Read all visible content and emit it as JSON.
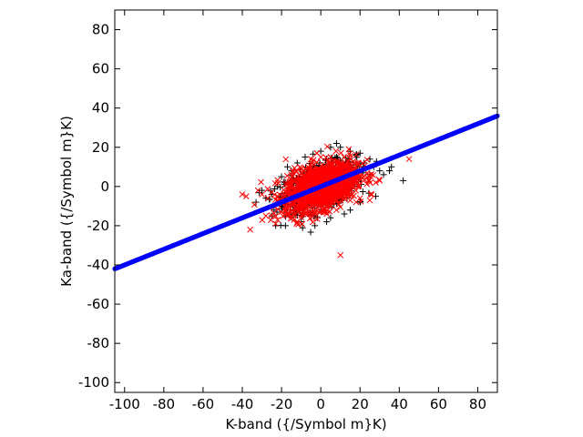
{
  "chart_data": {
    "type": "scatter",
    "xlabel": "K-band ({/Symbol m}K)",
    "ylabel": "Ka-band ({/Symbol m}K)",
    "xlim": [
      -105,
      90
    ],
    "ylim": [
      -105,
      90
    ],
    "xticks": [
      -100,
      -80,
      -60,
      -40,
      -20,
      0,
      20,
      40,
      60,
      80
    ],
    "yticks": [
      -100,
      -80,
      -60,
      -40,
      -20,
      0,
      20,
      40,
      60,
      80
    ],
    "grid": false,
    "series": [
      {
        "marker": "plus",
        "color": "#000000",
        "cluster_center": [
          0,
          0
        ],
        "cluster_spread": [
          9,
          6
        ],
        "points": [
          [
            -33,
            -8
          ],
          [
            -30,
            -2
          ],
          [
            -28,
            -6
          ],
          [
            -25,
            -4
          ],
          [
            -23,
            -20
          ],
          [
            -22,
            0
          ],
          [
            -20,
            -10
          ],
          [
            -20,
            5
          ],
          [
            -18,
            -20
          ],
          [
            -17,
            10
          ],
          [
            -15,
            8
          ],
          [
            -12,
            12
          ],
          [
            -10,
            -18
          ],
          [
            -8,
            15
          ],
          [
            -5,
            -15
          ],
          [
            -3,
            -20
          ],
          [
            0,
            18
          ],
          [
            3,
            -18
          ],
          [
            5,
            20
          ],
          [
            8,
            22
          ],
          [
            10,
            20
          ],
          [
            12,
            -14
          ],
          [
            15,
            18
          ],
          [
            18,
            16
          ],
          [
            20,
            17
          ],
          [
            22,
            12
          ],
          [
            25,
            14
          ],
          [
            27,
            10
          ],
          [
            28,
            -5
          ],
          [
            30,
            8
          ],
          [
            32,
            6
          ],
          [
            35,
            8
          ],
          [
            36,
            10
          ],
          [
            42,
            3
          ],
          [
            15,
            -12
          ],
          [
            20,
            -8
          ],
          [
            -25,
            -15
          ],
          [
            5,
            -16
          ]
        ]
      },
      {
        "marker": "cross",
        "color": "#ff0000",
        "cluster_center": [
          0,
          0
        ],
        "cluster_spread": [
          9,
          6
        ],
        "points": [
          [
            -40,
            -4
          ],
          [
            -38,
            -5
          ],
          [
            -36,
            -22
          ],
          [
            -32,
            -2
          ],
          [
            -30,
            -4
          ],
          [
            -28,
            -15
          ],
          [
            -25,
            -3
          ],
          [
            -23,
            -19
          ],
          [
            -22,
            -17
          ],
          [
            -20,
            -8
          ],
          [
            -18,
            -12
          ],
          [
            -15,
            -15
          ],
          [
            -12,
            -18
          ],
          [
            -10,
            -16
          ],
          [
            -5,
            14
          ],
          [
            -2,
            17
          ],
          [
            0,
            15
          ],
          [
            5,
            15
          ],
          [
            8,
            13
          ],
          [
            10,
            -35
          ],
          [
            12,
            10
          ],
          [
            15,
            8
          ],
          [
            18,
            -8
          ],
          [
            20,
            -6
          ],
          [
            22,
            5
          ],
          [
            25,
            -7
          ],
          [
            26,
            -4
          ],
          [
            28,
            2
          ],
          [
            30,
            3
          ],
          [
            45,
            14
          ],
          [
            -15,
            6
          ],
          [
            -10,
            9
          ],
          [
            3,
            -14
          ],
          [
            8,
            -12
          ]
        ]
      },
      {
        "marker": "line-of-points",
        "color": "#0000ff",
        "x": [
          -105,
          90
        ],
        "y": [
          -42,
          36
        ]
      }
    ]
  }
}
